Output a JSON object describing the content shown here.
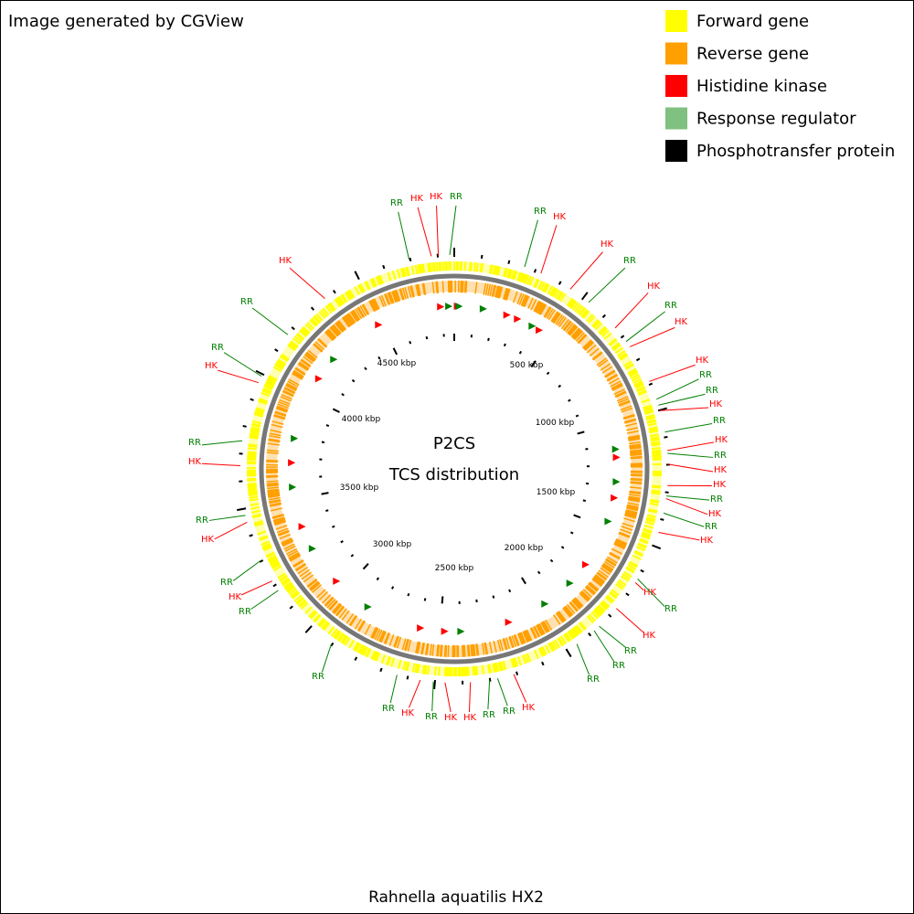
{
  "header": "Image generated by CGView",
  "legend": {
    "items": [
      {
        "label": "Forward gene",
        "color": "#ffff00"
      },
      {
        "label": "Reverse gene",
        "color": "#ff9f00"
      },
      {
        "label": "Histidine kinase",
        "color": "#ff0000"
      },
      {
        "label": "Response regulator",
        "color": "#80c080"
      },
      {
        "label": "Phosphotransfer protein",
        "color": "#000000"
      }
    ]
  },
  "center": {
    "title": "P2CS",
    "subtitle": "TCS distribution"
  },
  "scale_labels": [
    "500 kbp",
    "1000 kbp",
    "1500 kbp",
    "2000 kbp",
    "2500 kbp",
    "3000 kbp",
    "3500 kbp",
    "4000 kbp",
    "4500 kbp"
  ],
  "annotations": [
    "RR",
    "HK",
    "HK",
    "RR",
    "RR",
    "HK",
    "HK",
    "RR",
    "HK",
    "RR",
    "HK",
    "HK",
    "RR",
    "RR",
    "HK",
    "RR",
    "HK",
    "RR",
    "HK",
    "HK",
    "RR",
    "HK",
    "RR",
    "HK",
    "HK",
    "RR",
    "HK",
    "RR",
    "RR",
    "RR",
    "HK",
    "RR",
    "RR",
    "HK",
    "HK",
    "RR",
    "HK",
    "RR",
    "RR",
    "RR",
    "HK",
    "RR",
    "HK",
    "RR",
    "HK",
    "RR",
    "HK",
    "RR",
    "RR",
    "HK"
  ],
  "footer": "Rahnella aquatilis HX2"
}
